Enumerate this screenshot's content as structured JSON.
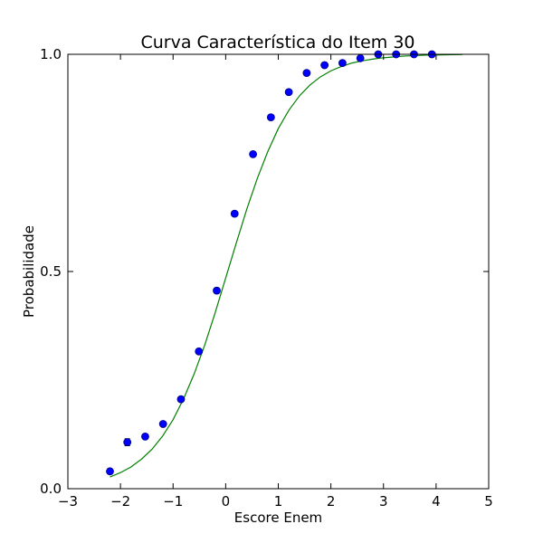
{
  "chart_data": {
    "type": "scatter",
    "title": "Curva Característica do Item 30",
    "xlabel": "Escore Enem",
    "ylabel": "Probabilidade",
    "xlim": [
      -3,
      5
    ],
    "ylim": [
      0.0,
      1.0
    ],
    "x_ticks": [
      -3,
      -2,
      -1,
      0,
      1,
      2,
      3,
      4,
      5
    ],
    "x_tick_labels": [
      "−3",
      "−2",
      "−1",
      "0",
      "1",
      "2",
      "3",
      "4",
      "5"
    ],
    "y_ticks": [
      0.0,
      0.5,
      1.0
    ],
    "y_tick_labels": [
      "0.0",
      "0.5",
      "1.0"
    ],
    "grid": false,
    "series": [
      {
        "kind": "points_with_errorbars",
        "color": "#0000ff",
        "edge_color": "#000080",
        "x": [
          -2.2,
          -1.87,
          -1.53,
          -1.19,
          -0.85,
          -0.51,
          -0.17,
          0.17,
          0.52,
          0.86,
          1.2,
          1.54,
          1.88,
          2.22,
          2.56,
          2.9,
          3.24,
          3.58,
          3.92
        ],
        "y": [
          0.04,
          0.107,
          0.12,
          0.149,
          0.206,
          0.316,
          0.456,
          0.633,
          0.77,
          0.855,
          0.913,
          0.957,
          0.975,
          0.98,
          0.991,
          1.0,
          1.0,
          1.0,
          1.0
        ],
        "err": [
          0.006,
          0.008,
          0.005,
          0.005,
          0.005,
          0.005,
          0.006,
          0.005,
          0.005,
          0.004,
          0.004,
          0.003,
          0.003,
          0.003,
          0.002,
          0.002,
          0.001,
          0.001,
          0.001
        ]
      },
      {
        "kind": "line",
        "color": "#008000",
        "x": [
          -2.2,
          -2.0,
          -1.8,
          -1.6,
          -1.4,
          -1.2,
          -1.0,
          -0.8,
          -0.6,
          -0.4,
          -0.2,
          0.0,
          0.2,
          0.4,
          0.6,
          0.8,
          1.0,
          1.2,
          1.4,
          1.6,
          1.8,
          2.0,
          2.2,
          2.4,
          2.6,
          2.8,
          3.0,
          3.2,
          3.4,
          3.6,
          3.8,
          4.0,
          4.2,
          4.5
        ],
        "y": [
          0.027,
          0.037,
          0.05,
          0.068,
          0.091,
          0.121,
          0.159,
          0.207,
          0.264,
          0.33,
          0.405,
          0.485,
          0.565,
          0.643,
          0.714,
          0.776,
          0.829,
          0.871,
          0.904,
          0.929,
          0.948,
          0.962,
          0.972,
          0.98,
          0.985,
          0.989,
          0.992,
          0.994,
          0.996,
          0.997,
          0.998,
          0.9985,
          0.999,
          0.9995
        ]
      }
    ]
  }
}
